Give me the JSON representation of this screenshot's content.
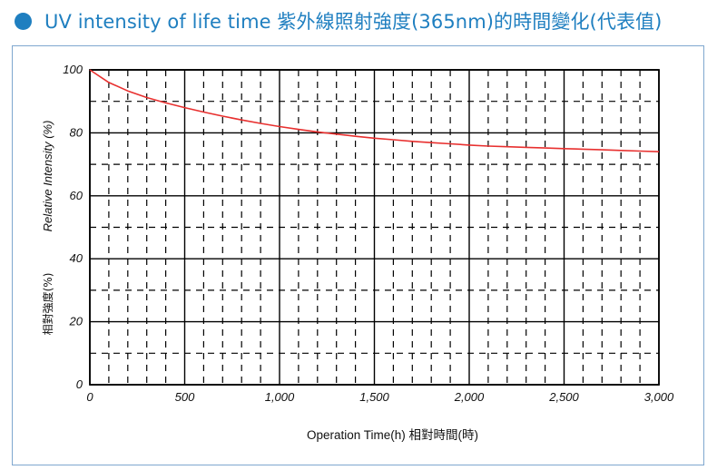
{
  "header": {
    "title": "UV intensity of life time 紫外線照射強度(365nm)的時間變化(代表值)"
  },
  "colors": {
    "accent": "#1f7fc0",
    "panel_border": "#7fa7cf",
    "line": "#e8302f",
    "grid": "#000000"
  },
  "chart_data": {
    "type": "line",
    "title": "UV intensity of life time 紫外線照射強度(365nm)的時間變化(代表值)",
    "xlabel": "Operation Time(h) 相對時間(時)",
    "ylabel": "Relative Intensity (%)",
    "ylabel2": "相對強度(%)",
    "xlim": [
      0,
      3000
    ],
    "ylim": [
      0,
      100
    ],
    "x_ticks": [
      0,
      500,
      1000,
      1500,
      2000,
      2500,
      3000
    ],
    "x_tick_labels": [
      "0",
      "500",
      "1,000",
      "1,500",
      "2,000",
      "2,500",
      "3,000"
    ],
    "y_ticks": [
      0,
      20,
      40,
      60,
      80,
      100
    ],
    "y_tick_labels": [
      "0",
      "20",
      "40",
      "60",
      "80",
      "100"
    ],
    "grid": "solid major every 500 h / 20 %, dashed minor every 100 h / 10 %",
    "series": [
      {
        "x": [
          0,
          100,
          200,
          300,
          400,
          500,
          600,
          700,
          800,
          900,
          1000,
          1100,
          1200,
          1300,
          1400,
          1500,
          1600,
          1700,
          1800,
          1900,
          2000,
          2100,
          2200,
          2300,
          2400,
          2500,
          2600,
          2700,
          2800,
          2900,
          3000
        ],
        "values": [
          100,
          96.0,
          93.3,
          91.2,
          89.5,
          88.0,
          86.6,
          85.3,
          84.1,
          83.0,
          82.0,
          81.1,
          80.3,
          79.6,
          78.9,
          78.3,
          77.8,
          77.3,
          76.9,
          76.5,
          76.1,
          75.8,
          75.6,
          75.4,
          75.2,
          75.0,
          74.8,
          74.6,
          74.4,
          74.2,
          74.0
        ]
      }
    ]
  }
}
